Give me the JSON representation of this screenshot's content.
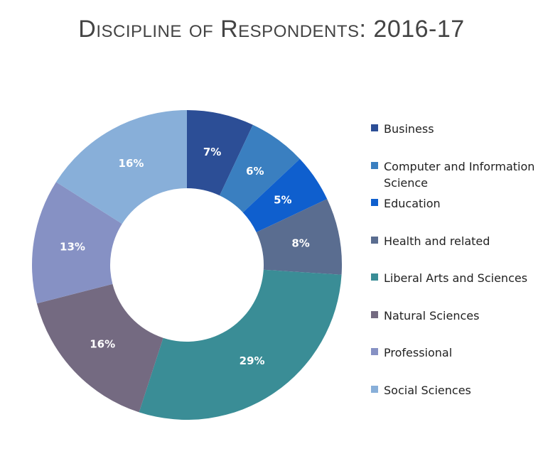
{
  "chart_data": {
    "type": "pie",
    "title": "Discipline of Respondents: 2016-17",
    "categories": [
      "Business",
      "Computer and Information Science",
      "Education",
      "Health and related",
      "Liberal Arts and Sciences",
      "Natural Sciences",
      "Professional",
      "Social Sciences"
    ],
    "values": [
      7,
      6,
      5,
      8,
      29,
      16,
      13,
      16
    ],
    "data_labels": [
      "7%",
      "6%",
      "5%",
      "8%",
      "29%",
      "16%",
      "13%",
      "16%"
    ],
    "colors": [
      "#2c4e96",
      "#3a7fc0",
      "#0f5fce",
      "#5a6d90",
      "#3a8d96",
      "#746a81",
      "#8691c4",
      "#88afd9"
    ],
    "donut": true,
    "legend_position": "right"
  }
}
